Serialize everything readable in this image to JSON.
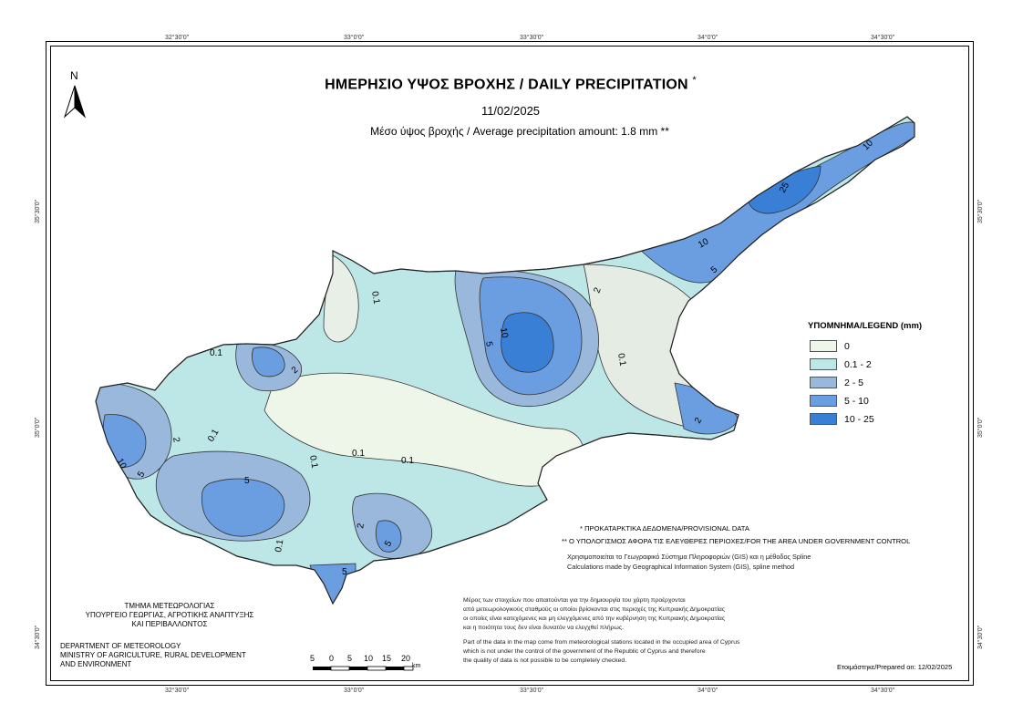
{
  "map": {
    "title": "ΗΜΕΡΗΣΙΟ ΥΨΟΣ ΒΡΟΧΗΣ / DAILY PRECIPITATION",
    "title_mark": "*",
    "date": "11/02/2025",
    "average": "Μέσο ύψος βροχής / Average precipitation amount: 1.8 mm **",
    "north_label": "N",
    "contour_labels": [
      "25",
      "10",
      "5",
      "10",
      "2",
      "0.1",
      "5",
      "10",
      "2",
      "0.1",
      "2",
      "0.1",
      "5",
      "0.1",
      "5",
      "0.1",
      "2",
      "5",
      "0.1",
      "5",
      "10",
      "2",
      "0.1",
      "0.1"
    ]
  },
  "graticule": {
    "top": [
      "32°30'0\"",
      "33°0'0\"",
      "33°30'0\"",
      "34°0'0\"",
      "34°30'0\""
    ],
    "bottom": [
      "32°30'0\"",
      "33°0'0\"",
      "33°30'0\"",
      "34°0'0\"",
      "34°30'0\""
    ],
    "left": [
      "35°30'0\"",
      "35°0'0\"",
      "34°30'0\""
    ],
    "right": [
      "35°30'0\"",
      "35°0'0\"",
      "34°30'0\""
    ]
  },
  "legend": {
    "title": "ΥΠΟΜΝΗΜΑ/LEGEND (mm)",
    "items": [
      {
        "label": "0",
        "color": "#eef6ea"
      },
      {
        "label": "0.1 - 2",
        "color": "#bde6e6"
      },
      {
        "label": "2 - 5",
        "color": "#9ab8dc"
      },
      {
        "label": "5 - 10",
        "color": "#6b9ee0"
      },
      {
        "label": "10 - 25",
        "color": "#3a7fd6"
      }
    ]
  },
  "notes": {
    "provisional": "* ΠΡΟΚΑΤΑΡΚΤΙΚΑ ΔΕΔΟΜΕΝΑ/PROVISIONAL DATA",
    "government": "** Ο ΥΠΟΛΟΓΙΣΜΟΣ ΑΦΟΡΑ ΤΙΣ ΕΛΕΥΘΕΡΕΣ ΠΕΡΙΟΧΕΣ/FOR THE AREA UNDER GOVERNMENT CONTROL",
    "gis_gr": "Χρησιμοποιείται το Γεωγραφικό Σύστημα Πληροφοριών (GIS) και η μέθοδος Spline",
    "gis_en": "Calculations made by Geographical Information System (GIS), spline method",
    "data_gr_1": "Μέρος των στοιχείων που απαιτούνται για την δημιουργία του χάρτη προέρχονται",
    "data_gr_2": "από μετεωρολογικούς σταθμούς οι οποίοι βρίσκονται στις περιοχές της Κυπριακής Δημοκρατίας",
    "data_gr_3": "οι οποίες είναι κατεχόμενες και μη ελεγχόμενες από την κυβέρνηση της Κυπριακής Δημοκρατίας",
    "data_gr_4": "και η ποιότητα τους δεν είναι δυνατόν να ελεγχθεί πλήρως.",
    "data_en_1": "Part of the data in the map come from meteorological stations located in the occupied area of Cyprus",
    "data_en_2": "which is not under the control of the government of the Republic of Cyprus and therefore",
    "data_en_3": "the quality of data is not possible to be completely checked."
  },
  "department": {
    "gr_1": "ΤΜΗΜΑ ΜΕΤΕΩΡΟΛΟΓΙΑΣ",
    "gr_2": "ΥΠΟΥΡΓΕΙΟ ΓΕΩΡΓΙΑΣ, ΑΓΡΟΤΙΚΗΣ ΑΝΑΠΤΥΞΗΣ",
    "gr_3": "ΚΑΙ ΠΕΡΙΒΑΛΛΟΝΤΟΣ",
    "en_1": "DEPARTMENT OF METEOROLOGY",
    "en_2": "MINISTRY OF AGRICULTURE, RURAL DEVELOPMENT",
    "en_3": "AND ENVIRONMENT"
  },
  "scale": {
    "labels": [
      "5",
      "0",
      "5",
      "10",
      "15",
      "20"
    ],
    "unit": "km"
  },
  "prepared": "Ετοιμάστηκε/Prepared on: 12/02/2025"
}
